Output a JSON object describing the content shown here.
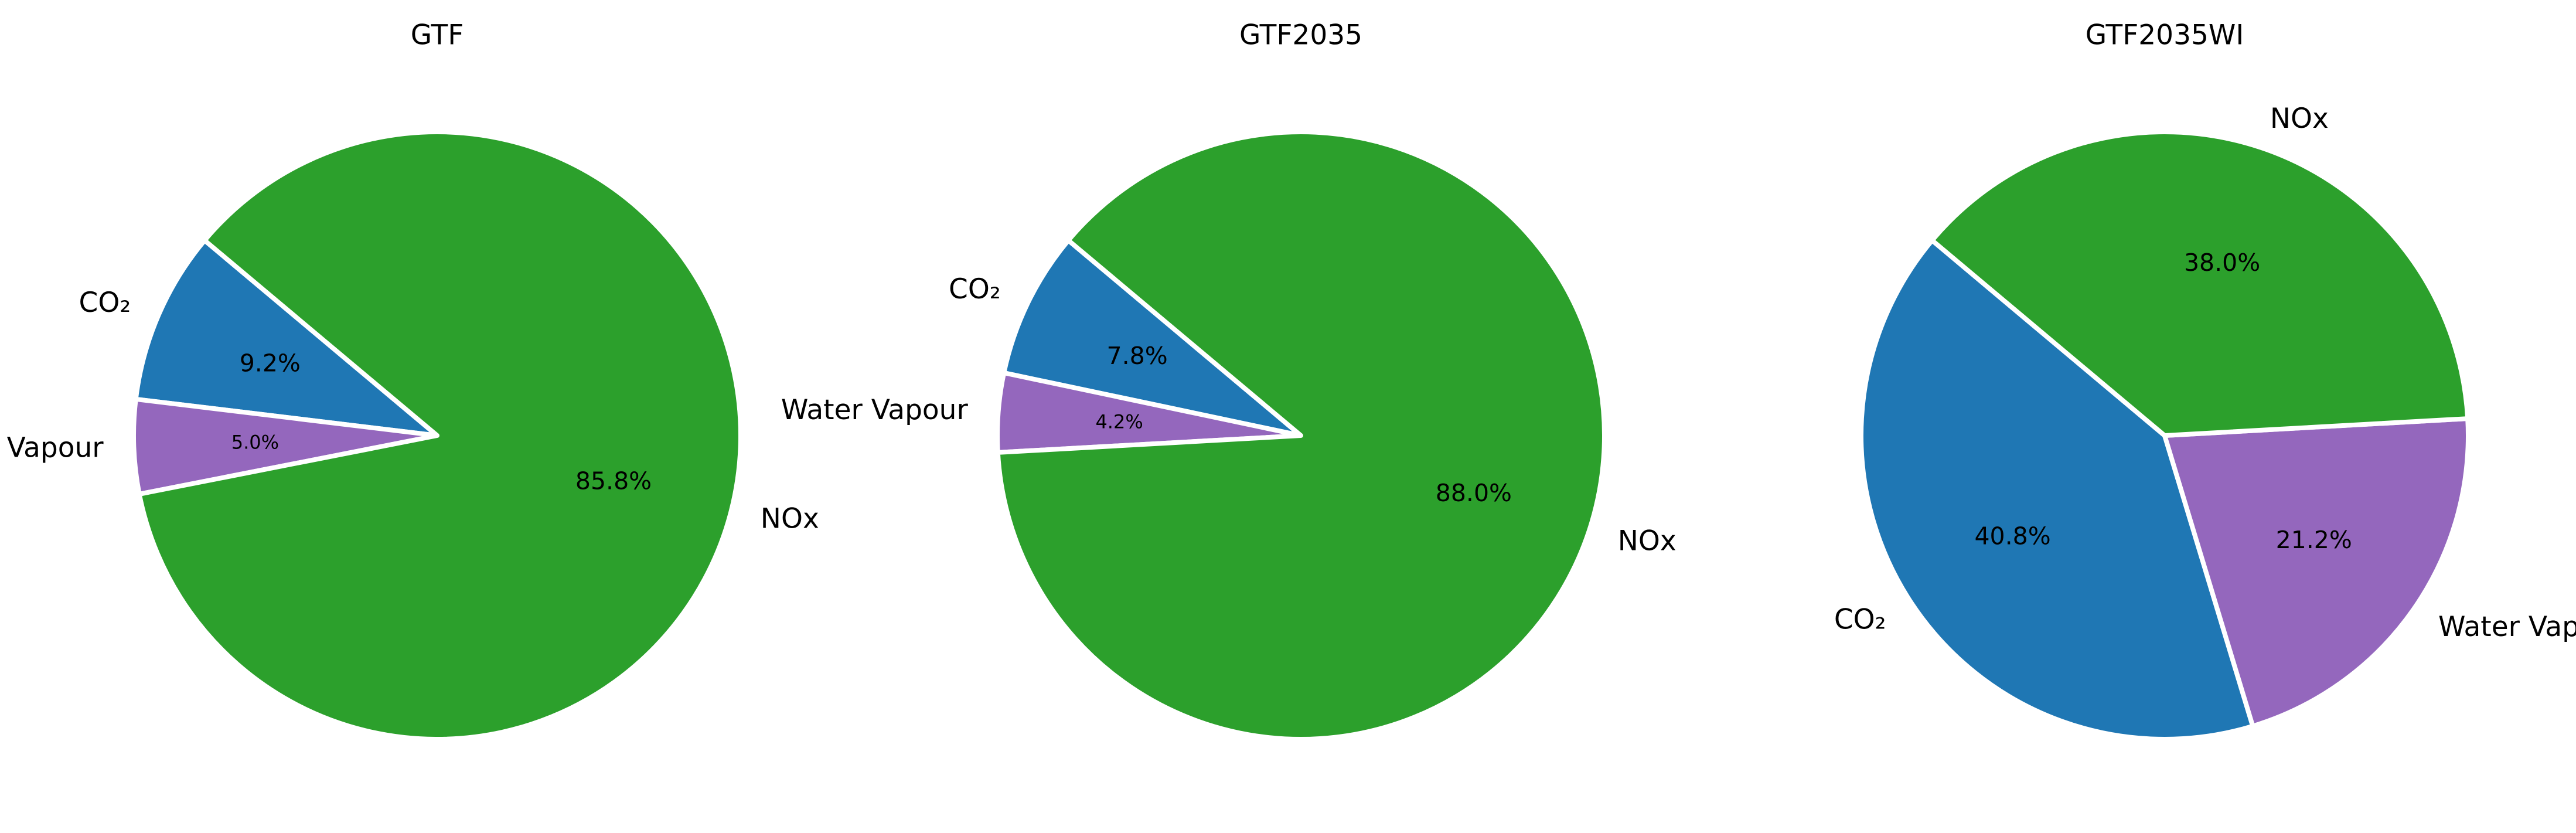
{
  "chart_data": [
    {
      "type": "pie",
      "title": "GTF",
      "labels": [
        "CO₂",
        "Water Vapour",
        "NOx"
      ],
      "values": [
        9.2,
        5.0,
        85.8
      ],
      "percent_labels": [
        "9.2%",
        "5.0%",
        "85.8%"
      ],
      "colors": [
        "#1f77b4",
        "#9467bd",
        "#2ca02c"
      ]
    },
    {
      "type": "pie",
      "title": "GTF2035",
      "labels": [
        "CO₂",
        "Water Vapour",
        "NOx"
      ],
      "values": [
        7.8,
        4.2,
        88.0
      ],
      "percent_labels": [
        "7.8%",
        "4.2%",
        "88.0%"
      ],
      "colors": [
        "#1f77b4",
        "#9467bd",
        "#2ca02c"
      ]
    },
    {
      "type": "pie",
      "title": "GTF2035WI",
      "labels": [
        "CO₂",
        "Water Vapour",
        "NOx"
      ],
      "values": [
        40.8,
        21.2,
        38.0
      ],
      "percent_labels": [
        "40.8%",
        "21.2%",
        "38.0%"
      ],
      "colors": [
        "#1f77b4",
        "#9467bd",
        "#2ca02c"
      ]
    }
  ]
}
